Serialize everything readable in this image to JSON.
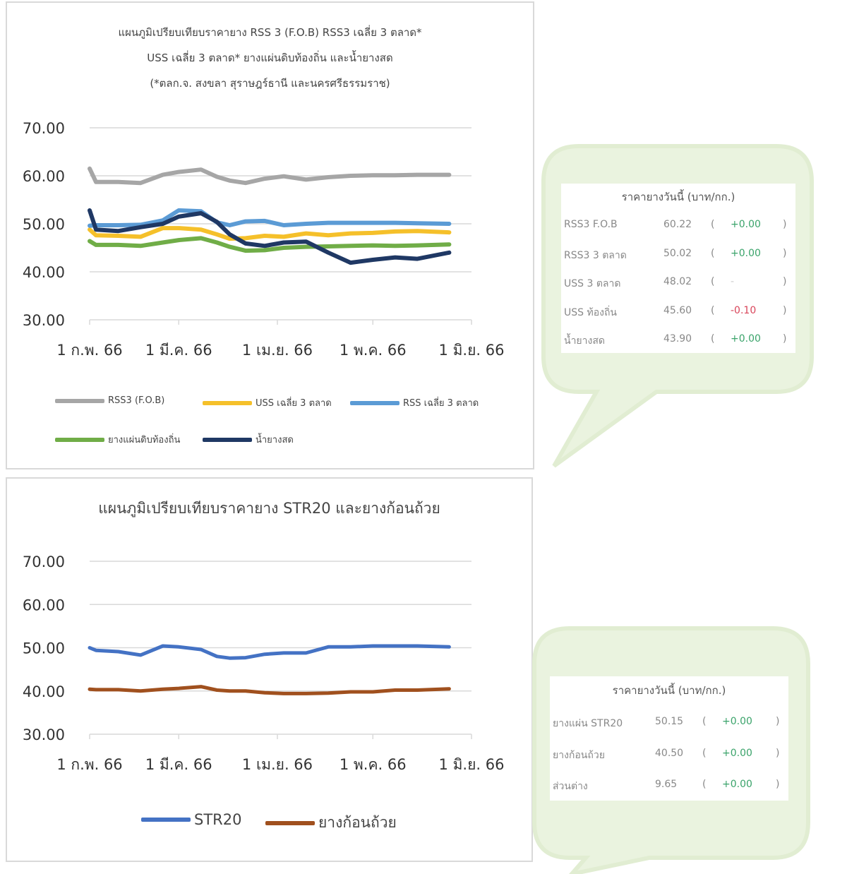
{
  "colors": {
    "gray": "#a6a6a6",
    "yellow": "#f5c02a",
    "lightblue": "#5b9bd5",
    "green": "#70ad47",
    "navy": "#1f3864",
    "blue": "#4472c4",
    "brown": "#a0501e",
    "up": "#3aa36a",
    "down": "#d9455a",
    "bubble": "#eaf3df"
  },
  "chart_data": [
    {
      "type": "line",
      "title": [
        "แผนภูมิเปรียบเทียบราคายาง RSS 3 (F.O.B) RSS3 เฉลี่ย 3 ตลาด*",
        "USS เฉลี่ย 3 ตลาด* ยางแผ่นดิบท้องถิ่น และน้ำยางสด",
        "(*ตลก.จ. สงขลา สุราษฎร์ธานี และนครศรีธรรมราช)"
      ],
      "ylim": [
        30,
        70
      ],
      "yticks": [
        "30.00",
        "40.00",
        "50.00",
        "60.00",
        "70.00"
      ],
      "xlim": [
        "2023-02-01",
        "2023-06-01"
      ],
      "xticks": [
        {
          "date": "2023-02-01",
          "label": "1 ก.พ. 66"
        },
        {
          "date": "2023-03-01",
          "label": "1 มี.ค. 66"
        },
        {
          "date": "2023-04-01",
          "label": "1 เม.ย. 66"
        },
        {
          "date": "2023-05-01",
          "label": "1 พ.ค. 66"
        },
        {
          "date": "2023-06-01",
          "label": "1 มิ.ย. 66"
        }
      ],
      "grid": true,
      "legend_position": "bottom",
      "x": [
        "2023-02-01",
        "2023-02-03",
        "2023-02-10",
        "2023-02-17",
        "2023-02-24",
        "2023-03-01",
        "2023-03-08",
        "2023-03-13",
        "2023-03-17",
        "2023-03-22",
        "2023-03-28",
        "2023-04-03",
        "2023-04-10",
        "2023-04-17",
        "2023-04-24",
        "2023-05-01",
        "2023-05-08",
        "2023-05-15",
        "2023-05-25"
      ],
      "series": [
        {
          "name": "RSS3 (F.O.B)",
          "color": "gray",
          "values": [
            61.5,
            58.7,
            58.7,
            58.5,
            60.2,
            60.8,
            61.3,
            59.8,
            59.0,
            58.5,
            59.4,
            59.9,
            59.2,
            59.7,
            60.0,
            60.1,
            60.1,
            60.2,
            60.2
          ]
        },
        {
          "name": "USS เฉลี่ย 3 ตลาด",
          "color": "yellow",
          "values": [
            48.8,
            47.6,
            47.5,
            47.3,
            49.1,
            49.1,
            48.8,
            47.8,
            46.9,
            47.0,
            47.5,
            47.3,
            48.0,
            47.6,
            48.0,
            48.1,
            48.4,
            48.5,
            48.2
          ]
        },
        {
          "name": "RSS เฉลี่ย 3 ตลาด",
          "color": "lightblue",
          "values": [
            49.6,
            49.7,
            49.7,
            49.8,
            50.7,
            52.8,
            52.6,
            50.3,
            49.7,
            50.5,
            50.6,
            49.7,
            50.0,
            50.2,
            50.2,
            50.2,
            50.2,
            50.1,
            50.0
          ]
        },
        {
          "name": "ยางแผ่นดิบท้องถิ่น",
          "color": "green",
          "values": [
            46.4,
            45.6,
            45.6,
            45.4,
            46.1,
            46.6,
            47.0,
            46.1,
            45.2,
            44.4,
            44.5,
            45.0,
            45.2,
            45.3,
            45.4,
            45.5,
            45.4,
            45.5,
            45.7
          ]
        },
        {
          "name": "น้ำยางสด",
          "color": "navy",
          "values": [
            52.8,
            48.8,
            48.5,
            49.3,
            50.0,
            51.5,
            52.2,
            50.4,
            47.8,
            45.9,
            45.4,
            46.1,
            46.3,
            44.0,
            41.9,
            42.5,
            43.0,
            42.7,
            44.0
          ]
        }
      ]
    },
    {
      "type": "line",
      "title": "แผนภูมิเปรียบเทียบราคายาง STR20 และยางก้อนถ้วย",
      "ylim": [
        30,
        70
      ],
      "yticks": [
        "30.00",
        "40.00",
        "50.00",
        "60.00",
        "70.00"
      ],
      "xlim": [
        "2023-02-01",
        "2023-06-01"
      ],
      "xticks": [
        {
          "date": "2023-02-01",
          "label": "1 ก.พ. 66"
        },
        {
          "date": "2023-03-01",
          "label": "1 มี.ค. 66"
        },
        {
          "date": "2023-04-01",
          "label": "1 เม.ย. 66"
        },
        {
          "date": "2023-05-01",
          "label": "1 พ.ค. 66"
        },
        {
          "date": "2023-06-01",
          "label": "1 มิ.ย. 66"
        }
      ],
      "grid": true,
      "legend_position": "bottom",
      "x": [
        "2023-02-01",
        "2023-02-03",
        "2023-02-10",
        "2023-02-17",
        "2023-02-24",
        "2023-03-01",
        "2023-03-08",
        "2023-03-13",
        "2023-03-17",
        "2023-03-22",
        "2023-03-28",
        "2023-04-03",
        "2023-04-10",
        "2023-04-17",
        "2023-04-24",
        "2023-05-01",
        "2023-05-08",
        "2023-05-15",
        "2023-05-25"
      ],
      "series": [
        {
          "name": "STR20",
          "color": "blue",
          "values": [
            50.0,
            49.4,
            49.1,
            48.3,
            50.4,
            50.2,
            49.6,
            48.0,
            47.6,
            47.7,
            48.5,
            48.8,
            48.8,
            50.2,
            50.2,
            50.4,
            50.4,
            50.4,
            50.2
          ]
        },
        {
          "name": "ยางก้อนถ้วย",
          "color": "brown",
          "values": [
            40.4,
            40.3,
            40.3,
            40.0,
            40.4,
            40.6,
            41.0,
            40.2,
            40.0,
            40.0,
            39.6,
            39.4,
            39.4,
            39.5,
            39.8,
            39.8,
            40.2,
            40.2,
            40.5
          ]
        }
      ]
    }
  ],
  "price_box_1": {
    "heading": "ราคายางวันนี้ (บาท/กก.)",
    "rows": [
      {
        "label": "RSS3 F.O.B",
        "price": "60.22",
        "change": "+0.00",
        "trend": "up"
      },
      {
        "label": "RSS3 3 ตลาด",
        "price": "50.02",
        "change": "+0.00",
        "trend": "up"
      },
      {
        "label": "USS 3 ตลาด",
        "price": "48.02",
        "change": "-",
        "trend": "none"
      },
      {
        "label": "USS ท้องถิ่น",
        "price": "45.60",
        "change": "-0.10",
        "trend": "down"
      },
      {
        "label": "น้ำยางสด",
        "price": "43.90",
        "change": "+0.00",
        "trend": "up"
      }
    ]
  },
  "price_box_2": {
    "heading": "ราคายางวันนี้ (บาท/กก.)",
    "rows": [
      {
        "label": "ยางแผ่น STR20",
        "price": "50.15",
        "change": "+0.00",
        "trend": "up"
      },
      {
        "label": "ยางก้อนถ้วย",
        "price": "40.50",
        "change": "+0.00",
        "trend": "up"
      },
      {
        "label": "ส่วนต่าง",
        "price": "9.65",
        "change": "+0.00",
        "trend": "up"
      }
    ]
  },
  "paren_open": "(",
  "paren_close": ")"
}
